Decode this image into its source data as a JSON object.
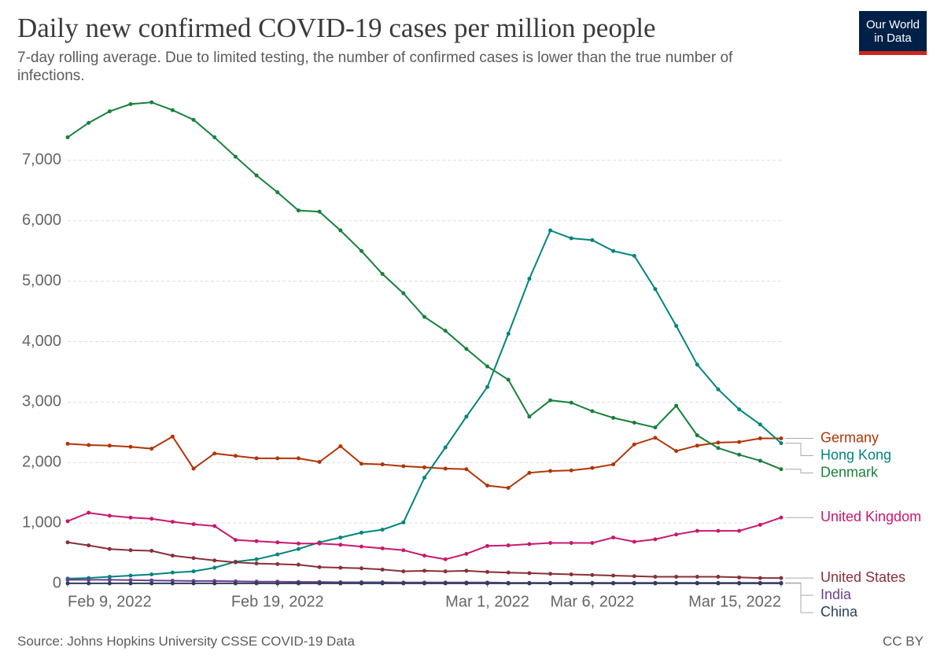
{
  "chart_data": {
    "type": "line",
    "title": "Daily new confirmed COVID-19 cases per million people",
    "subtitle": "7-day rolling average. Due to limited testing, the number of confirmed cases is lower than the true number of infections.",
    "logo": [
      "Our World",
      "in Data"
    ],
    "source": "Source: Johns Hopkins University CSSE COVID-19 Data",
    "license": "CC BY",
    "x": [
      "2022-02-09",
      "2022-02-10",
      "2022-02-11",
      "2022-02-12",
      "2022-02-13",
      "2022-02-14",
      "2022-02-15",
      "2022-02-16",
      "2022-02-17",
      "2022-02-18",
      "2022-02-19",
      "2022-02-20",
      "2022-02-21",
      "2022-02-22",
      "2022-02-23",
      "2022-02-24",
      "2022-02-25",
      "2022-02-26",
      "2022-02-27",
      "2022-02-28",
      "2022-03-01",
      "2022-03-02",
      "2022-03-03",
      "2022-03-04",
      "2022-03-05",
      "2022-03-06",
      "2022-03-07",
      "2022-03-08",
      "2022-03-09",
      "2022-03-10",
      "2022-03-11",
      "2022-03-12",
      "2022-03-13",
      "2022-03-14",
      "2022-03-15"
    ],
    "xticks": [
      {
        "value": "2022-02-09",
        "label": "Feb 9, 2022"
      },
      {
        "value": "2022-02-19",
        "label": "Feb 19, 2022"
      },
      {
        "value": "2022-03-01",
        "label": "Mar 1, 2022"
      },
      {
        "value": "2022-03-06",
        "label": "Mar 6, 2022"
      },
      {
        "value": "2022-03-15",
        "label": "Mar 15, 2022"
      }
    ],
    "ylim": [
      0,
      8000
    ],
    "yticks": [
      0,
      {
        "value": 1000,
        "label": "1,000"
      },
      {
        "value": 2000,
        "label": "2,000"
      },
      {
        "value": 3000,
        "label": "3,000"
      },
      {
        "value": 4000,
        "label": "4,000"
      },
      {
        "value": 5000,
        "label": "5,000"
      },
      {
        "value": 6000,
        "label": "6,000"
      },
      {
        "value": 7000,
        "label": "7,000"
      }
    ],
    "grid": true,
    "series": [
      {
        "name": "Germany",
        "color": "#b13507",
        "values": [
          2310,
          2290,
          2280,
          2260,
          2230,
          2430,
          1900,
          2150,
          2110,
          2070,
          2070,
          2070,
          2010,
          2270,
          1980,
          1970,
          1940,
          1920,
          1900,
          1890,
          1620,
          1580,
          1830,
          1860,
          1870,
          1910,
          1970,
          2300,
          2410,
          2190,
          2280,
          2330,
          2340,
          2400,
          2400
        ]
      },
      {
        "name": "Hong Kong",
        "color": "#00847e",
        "values": [
          80,
          90,
          110,
          130,
          150,
          180,
          200,
          260,
          360,
          400,
          480,
          570,
          680,
          760,
          840,
          890,
          1010,
          1750,
          2250,
          2760,
          3250,
          4130,
          5040,
          5840,
          5710,
          5680,
          5500,
          5420,
          4870,
          4260,
          3620,
          3210,
          2880,
          2630,
          2320
        ]
      },
      {
        "name": "Denmark",
        "color": "#18803c",
        "values": [
          7380,
          7620,
          7810,
          7930,
          7960,
          7830,
          7670,
          7380,
          7060,
          6750,
          6470,
          6170,
          6150,
          5840,
          5500,
          5120,
          4800,
          4410,
          4180,
          3880,
          3590,
          3370,
          2760,
          3030,
          2990,
          2850,
          2740,
          2660,
          2580,
          2940,
          2450,
          2240,
          2130,
          2030,
          1890
        ]
      },
      {
        "name": "United Kingdom",
        "color": "#c8196f",
        "values": [
          1030,
          1170,
          1120,
          1090,
          1070,
          1020,
          980,
          950,
          720,
          700,
          680,
          660,
          660,
          640,
          610,
          580,
          550,
          460,
          400,
          490,
          620,
          630,
          650,
          670,
          670,
          670,
          760,
          690,
          730,
          810,
          870,
          870,
          870,
          970,
          1090
        ]
      },
      {
        "name": "United States",
        "color": "#883039",
        "values": [
          680,
          630,
          570,
          550,
          540,
          460,
          420,
          380,
          350,
          330,
          320,
          310,
          270,
          260,
          250,
          230,
          200,
          210,
          200,
          210,
          190,
          180,
          170,
          160,
          150,
          140,
          130,
          120,
          110,
          110,
          110,
          110,
          100,
          90,
          90
        ]
      },
      {
        "name": "India",
        "color": "#6d3e91",
        "values": [
          60,
          60,
          60,
          55,
          50,
          45,
          40,
          40,
          35,
          30,
          30,
          25,
          25,
          20,
          20,
          20,
          15,
          15,
          15,
          15,
          15,
          10,
          10,
          10,
          10,
          10,
          10,
          10,
          10,
          10,
          10,
          10,
          10,
          10,
          10
        ]
      },
      {
        "name": "China",
        "color": "#2c3e5a",
        "values": [
          1,
          1,
          1,
          1,
          1,
          1,
          1,
          1,
          1,
          1,
          1,
          1,
          1,
          1,
          1,
          1,
          1,
          1,
          1,
          1,
          1,
          1,
          1,
          1,
          1,
          1,
          1,
          1,
          1,
          1,
          1,
          1,
          1,
          1,
          1
        ]
      }
    ]
  }
}
